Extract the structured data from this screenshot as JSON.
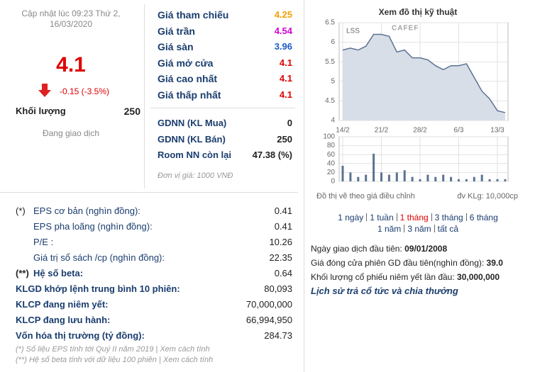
{
  "header": {
    "updated": "Cập nhật lúc 09:23 Thứ 2, 16/03/2020",
    "price": "4.1",
    "change": "-0.15 (-3.5%)",
    "volume_label": "Khối lượng",
    "volume": "250",
    "status": "Đang giao dịch"
  },
  "prices": {
    "rows": [
      {
        "label": "Giá tham chiếu",
        "value": "4.25",
        "color": "#f0a000"
      },
      {
        "label": "Giá trần",
        "value": "4.54",
        "color": "#d400d4"
      },
      {
        "label": "Giá sàn",
        "value": "3.96",
        "color": "#1f5cc7"
      },
      {
        "label": "Giá mở cửa",
        "value": "4.1",
        "color": "#e00000"
      },
      {
        "label": "Giá cao nhất",
        "value": "4.1",
        "color": "#e00000"
      },
      {
        "label": "Giá thấp nhất",
        "value": "4.1",
        "color": "#e00000"
      }
    ],
    "foreign": [
      {
        "label": "GDNN (KL Mua)",
        "value": "0"
      },
      {
        "label": "GDNN (KL Bán)",
        "value": "250"
      },
      {
        "label": "Room NN còn lại",
        "value": "47.38 (%)"
      }
    ],
    "unit": "Đơn vị giá: 1000 VNĐ"
  },
  "chart_panel": {
    "title": "Xem đồ thị kỹ thuật",
    "ticker": "LSS",
    "logo": "CAFEF",
    "note": "Đồ thị vẽ theo giá điều chỉnh",
    "volume_unit": "đv KLg: 10,000cp",
    "ranges": [
      [
        "1 ngày",
        "1 tuần",
        "1 tháng",
        "3 tháng",
        "6 tháng"
      ],
      [
        "1 năm",
        "3 năm",
        "tất cả"
      ]
    ]
  },
  "chart_data": {
    "type": "line",
    "categories": [
      "14/2",
      null,
      null,
      null,
      null,
      "21/2",
      null,
      null,
      null,
      null,
      "28/2",
      null,
      null,
      null,
      null,
      "6/3",
      null,
      null,
      null,
      null,
      "13/3",
      null
    ],
    "values": [
      5.8,
      5.85,
      5.8,
      5.9,
      6.2,
      6.2,
      6.15,
      5.75,
      5.8,
      5.6,
      5.6,
      5.55,
      5.4,
      5.3,
      5.4,
      5.4,
      5.45,
      5.1,
      4.75,
      4.55,
      4.25,
      4.2
    ],
    "color": "#5b7394",
    "area_color": "#d8dee7",
    "ylim": [
      4,
      6.5
    ],
    "yticks": [
      4,
      4.5,
      5,
      5.5,
      6,
      6.5
    ],
    "grid": true,
    "volume": {
      "values": [
        35,
        20,
        10,
        15,
        62,
        20,
        15,
        20,
        25,
        10,
        5,
        15,
        10,
        15,
        10,
        5,
        5,
        10,
        15,
        5,
        5,
        5
      ],
      "color": "#5b7394",
      "ylim": [
        0,
        100
      ],
      "yticks": [
        0,
        20,
        40,
        60,
        80,
        100
      ]
    }
  },
  "listing": [
    {
      "label": "Ngày giao dịch đầu tiên: ",
      "value": "09/01/2008"
    },
    {
      "label": "Giá đóng cửa phiên GD đầu tiên(nghìn đồng): ",
      "value": "39.0"
    },
    {
      "label": "Khối lượng cổ phiếu niêm yết lần đầu: ",
      "value": "30,000,000"
    }
  ],
  "history_link": "Lịch sử trả cổ tức và chia thưởng",
  "stats": [
    {
      "marker": "(*)",
      "label": "EPS cơ bản (nghìn đồng):",
      "value": "0.41"
    },
    {
      "label": "EPS pha loãng (nghìn đồng):",
      "value": "0.41"
    },
    {
      "label": "P/E :",
      "value": "10.26"
    },
    {
      "label": "Giá trị sổ sách /cp (nghìn đồng):",
      "value": "22.35"
    },
    {
      "marker": "(**)",
      "label": "Hệ số beta:",
      "value": "0.64"
    },
    {
      "label": "KLGD khớp lệnh trung bình 10 phiên:",
      "value": "80,093"
    },
    {
      "label": "KLCP đang niêm yết:",
      "value": "70,000,000"
    },
    {
      "label": "KLCP đang lưu hành:",
      "value": "66,994,950"
    },
    {
      "label": "Vốn hóa thị trường (tỷ đồng):",
      "value": "284.73"
    }
  ],
  "footnotes": [
    "(*) Số liệu EPS tính tới Quý II năm 2019 | Xem cách tính",
    "(**) Hệ số beta tính với dữ liệu 100 phiên | Xem cách tính"
  ]
}
